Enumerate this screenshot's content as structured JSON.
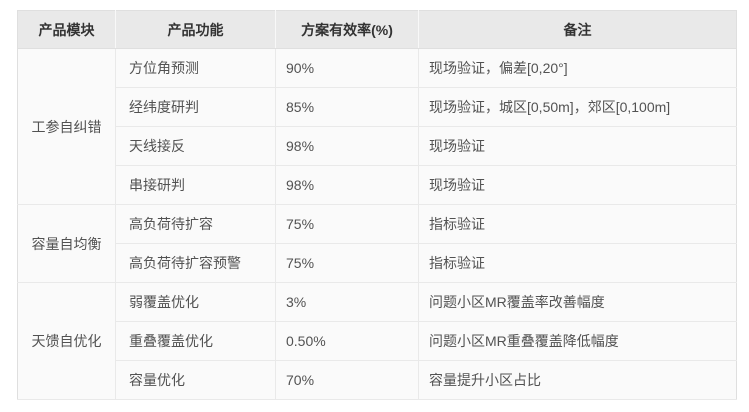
{
  "table": {
    "headers": {
      "module": "产品模块",
      "function": "产品功能",
      "rate": "方案有效率(%)",
      "note": "备注"
    },
    "groups": [
      {
        "module": "工参自纠错",
        "rows": [
          {
            "func": "方位角预测",
            "rate": "90%",
            "note": "现场验证，偏差[0,20°]"
          },
          {
            "func": "经纬度研判",
            "rate": "85%",
            "note": "现场验证，城区[0,50m]，郊区[0,100m]"
          },
          {
            "func": "天线接反",
            "rate": "98%",
            "note": "现场验证"
          },
          {
            "func": "串接研判",
            "rate": "98%",
            "note": "现场验证"
          }
        ]
      },
      {
        "module": "容量自均衡",
        "rows": [
          {
            "func": "高负荷待扩容",
            "rate": "75%",
            "note": "指标验证"
          },
          {
            "func": "高负荷待扩容预警",
            "rate": "75%",
            "note": "指标验证"
          }
        ]
      },
      {
        "module": "天馈自优化",
        "rows": [
          {
            "func": "弱覆盖优化",
            "rate": "3%",
            "note": "问题小区MR覆盖率改善幅度"
          },
          {
            "func": "重叠覆盖优化",
            "rate": "0.50%",
            "note": "问题小区MR重叠覆盖降低幅度"
          },
          {
            "func": "容量优化",
            "rate": "70%",
            "note": "容量提升小区占比"
          }
        ]
      }
    ],
    "colors": {
      "header_bg": "#e9e9e9",
      "body_bg": "#fafafa",
      "outer_border": "#dfdfdf",
      "inner_border": "#e9e9e9",
      "header_text": "#333333",
      "body_text": "#525252"
    }
  }
}
